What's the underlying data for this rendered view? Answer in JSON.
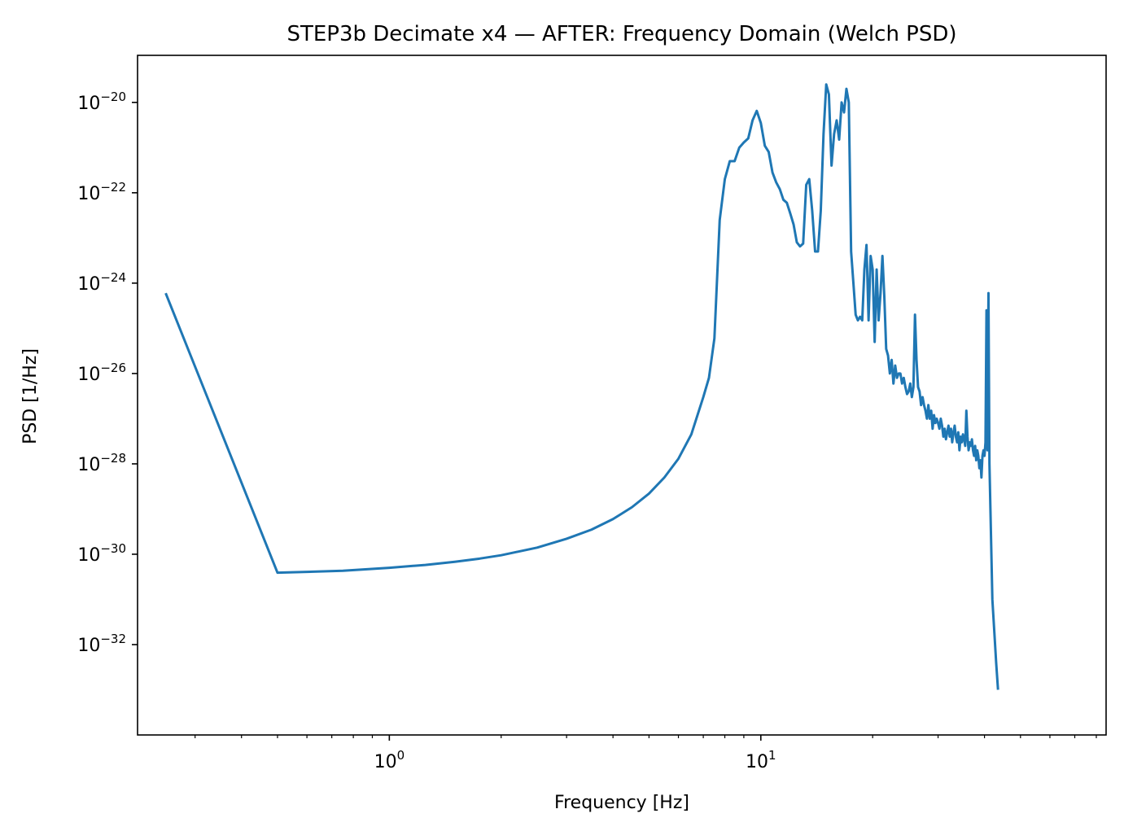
{
  "chart_data": {
    "type": "line",
    "title": "STEP3b Decimate x4 — AFTER: Frequency Domain (Welch PSD)",
    "xlabel": "Frequency [Hz]",
    "ylabel": "PSD [1/Hz]",
    "xscale": "log",
    "yscale": "log",
    "xlim": [
      0.21,
      85
    ],
    "ylim": [
      1e-34,
      1.1e-19
    ],
    "grid": false,
    "legend": "none",
    "x_major_ticks": [
      {
        "value": 1,
        "base": "10",
        "exp": "0"
      },
      {
        "value": 10,
        "base": "10",
        "exp": "1"
      }
    ],
    "x_minor_ticks": [
      0.3,
      0.4,
      0.5,
      0.6,
      0.7,
      0.8,
      0.9,
      2,
      3,
      4,
      5,
      6,
      7,
      8,
      9,
      20,
      30,
      40,
      50,
      60,
      70,
      80
    ],
    "y_ticks": [
      {
        "value": 1e-32,
        "base": "10",
        "exp": "−32"
      },
      {
        "value": 1e-30,
        "base": "10",
        "exp": "−30"
      },
      {
        "value": 1e-28,
        "base": "10",
        "exp": "−28"
      },
      {
        "value": 1e-26,
        "base": "10",
        "exp": "−26"
      },
      {
        "value": 1e-24,
        "base": "10",
        "exp": "−24"
      },
      {
        "value": 1e-22,
        "base": "10",
        "exp": "−22"
      },
      {
        "value": 1e-20,
        "base": "10",
        "exp": "−20"
      }
    ],
    "series": [
      {
        "color": "#1f77b4",
        "points": [
          [
            0.25,
            6e-25
          ],
          [
            0.5,
            3.9e-31
          ],
          [
            0.75,
            4.3e-31
          ],
          [
            1.0,
            5e-31
          ],
          [
            1.25,
            5.8e-31
          ],
          [
            1.5,
            6.8e-31
          ],
          [
            1.75,
            8e-31
          ],
          [
            2.0,
            9.5e-31
          ],
          [
            2.5,
            1.4e-30
          ],
          [
            3.0,
            2.2e-30
          ],
          [
            3.5,
            3.5e-30
          ],
          [
            4.0,
            6e-30
          ],
          [
            4.5,
            1.1e-29
          ],
          [
            5.0,
            2.2e-29
          ],
          [
            5.5,
            5e-29
          ],
          [
            6.0,
            1.3e-28
          ],
          [
            6.5,
            4.5e-28
          ],
          [
            7.0,
            3e-27
          ],
          [
            7.25,
            8e-27
          ],
          [
            7.5,
            6e-26
          ],
          [
            7.75,
            2.5e-23
          ],
          [
            8.0,
            2e-22
          ],
          [
            8.25,
            5e-22
          ],
          [
            8.5,
            5e-22
          ],
          [
            8.75,
            1e-21
          ],
          [
            9.0,
            1.3e-21
          ],
          [
            9.25,
            1.6e-21
          ],
          [
            9.5,
            4e-21
          ],
          [
            9.75,
            6.5e-21
          ],
          [
            10.0,
            3.5e-21
          ],
          [
            10.25,
            1.1e-21
          ],
          [
            10.5,
            8e-22
          ],
          [
            10.75,
            2.8e-22
          ],
          [
            11.0,
            1.7e-22
          ],
          [
            11.25,
            1.2e-22
          ],
          [
            11.5,
            7e-23
          ],
          [
            11.75,
            6e-23
          ],
          [
            12.0,
            3.5e-23
          ],
          [
            12.25,
            2e-23
          ],
          [
            12.5,
            8e-24
          ],
          [
            12.75,
            6.5e-24
          ],
          [
            13.0,
            7.5e-24
          ],
          [
            13.25,
            1.5e-22
          ],
          [
            13.5,
            2e-22
          ],
          [
            13.75,
            4e-23
          ],
          [
            14.0,
            5e-24
          ],
          [
            14.25,
            5e-24
          ],
          [
            14.5,
            4e-23
          ],
          [
            14.75,
            2e-21
          ],
          [
            15.0,
            2.5e-20
          ],
          [
            15.25,
            1.5e-20
          ],
          [
            15.5,
            4e-22
          ],
          [
            15.75,
            2e-21
          ],
          [
            16.0,
            4e-21
          ],
          [
            16.25,
            1.5e-21
          ],
          [
            16.5,
            1e-20
          ],
          [
            16.75,
            6e-21
          ],
          [
            17.0,
            2e-20
          ],
          [
            17.25,
            1e-20
          ],
          [
            17.5,
            5e-24
          ],
          [
            17.75,
            1e-24
          ],
          [
            18.0,
            2e-25
          ],
          [
            18.25,
            1.5e-25
          ],
          [
            18.5,
            1.8e-25
          ],
          [
            18.75,
            1.5e-25
          ],
          [
            19.0,
            2e-24
          ],
          [
            19.25,
            7e-24
          ],
          [
            19.5,
            1.5e-25
          ],
          [
            19.75,
            4e-24
          ],
          [
            20.0,
            2e-24
          ],
          [
            20.25,
            5e-26
          ],
          [
            20.5,
            2e-24
          ],
          [
            20.75,
            1.5e-25
          ],
          [
            21.0,
            6e-25
          ],
          [
            21.25,
            4e-24
          ],
          [
            21.5,
            5e-25
          ],
          [
            21.75,
            3.5e-26
          ],
          [
            22.0,
            2.5e-26
          ],
          [
            22.25,
            1e-26
          ],
          [
            22.5,
            2e-26
          ],
          [
            22.75,
            6e-27
          ],
          [
            23.0,
            1.5e-26
          ],
          [
            23.25,
            8e-27
          ],
          [
            23.5,
            1e-26
          ],
          [
            23.75,
            1e-26
          ],
          [
            24.0,
            6e-27
          ],
          [
            24.25,
            8e-27
          ],
          [
            24.5,
            5e-27
          ],
          [
            24.75,
            3.5e-27
          ],
          [
            25.0,
            4e-27
          ],
          [
            25.25,
            6e-27
          ],
          [
            25.5,
            3e-27
          ],
          [
            25.75,
            5e-27
          ],
          [
            26.0,
            2e-25
          ],
          [
            26.25,
            2e-26
          ],
          [
            26.5,
            5e-27
          ],
          [
            26.75,
            4e-27
          ],
          [
            27.0,
            2e-27
          ],
          [
            27.25,
            3e-27
          ],
          [
            27.5,
            2e-27
          ],
          [
            27.75,
            1.5e-27
          ],
          [
            28.0,
            1e-27
          ],
          [
            28.25,
            2e-27
          ],
          [
            28.5,
            1e-27
          ],
          [
            28.75,
            1.5e-27
          ],
          [
            29.0,
            6e-28
          ],
          [
            29.25,
            1.2e-27
          ],
          [
            29.5,
            8e-28
          ],
          [
            29.75,
            1e-27
          ],
          [
            30.0,
            8e-28
          ],
          [
            30.25,
            6e-28
          ],
          [
            30.5,
            1e-27
          ],
          [
            30.75,
            7e-28
          ],
          [
            31.0,
            4e-28
          ],
          [
            31.25,
            6e-28
          ],
          [
            31.5,
            3.5e-28
          ],
          [
            31.75,
            5e-28
          ],
          [
            32.0,
            7e-28
          ],
          [
            32.25,
            4e-28
          ],
          [
            32.5,
            6e-28
          ],
          [
            32.75,
            3e-28
          ],
          [
            33.0,
            5e-28
          ],
          [
            33.25,
            7e-28
          ],
          [
            33.5,
            4e-28
          ],
          [
            33.75,
            3e-28
          ],
          [
            34.0,
            5e-28
          ],
          [
            34.25,
            2e-28
          ],
          [
            34.5,
            4e-28
          ],
          [
            34.75,
            3e-28
          ],
          [
            35.0,
            4.5e-28
          ],
          [
            35.25,
            3.5e-28
          ],
          [
            35.5,
            2.5e-28
          ],
          [
            35.75,
            1.5e-27
          ],
          [
            36.0,
            4e-28
          ],
          [
            36.25,
            2e-28
          ],
          [
            36.5,
            3e-28
          ],
          [
            36.75,
            2.5e-28
          ],
          [
            37.0,
            3.5e-28
          ],
          [
            37.25,
            2e-28
          ],
          [
            37.5,
            1.5e-28
          ],
          [
            37.75,
            2.5e-28
          ],
          [
            38.0,
            1.2e-28
          ],
          [
            38.25,
            2e-28
          ],
          [
            38.5,
            1.5e-28
          ],
          [
            38.75,
            8e-29
          ],
          [
            39.0,
            1.2e-28
          ],
          [
            39.25,
            5e-29
          ],
          [
            39.5,
            1.5e-28
          ],
          [
            39.75,
            2e-28
          ],
          [
            40.0,
            1.5e-28
          ],
          [
            40.25,
            3e-28
          ],
          [
            40.5,
            2.5e-25
          ],
          [
            40.75,
            2e-28
          ],
          [
            41.0,
            6e-25
          ],
          [
            41.25,
            1e-28
          ],
          [
            41.5,
            1e-29
          ],
          [
            42.0,
            1e-31
          ],
          [
            42.5,
            2e-32
          ],
          [
            43.0,
            4e-33
          ],
          [
            43.5,
            1e-33
          ]
        ]
      }
    ]
  }
}
